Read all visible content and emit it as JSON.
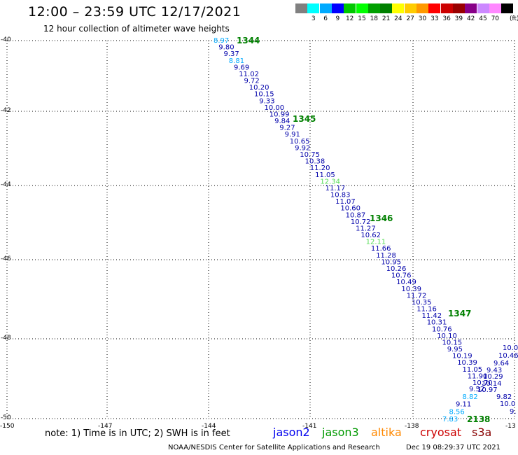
{
  "title": "12:00 – 23:59 UTC 12/17/2021",
  "subtitle": "12 hour collection of altimeter wave heights",
  "scale": {
    "unit": "(ft)",
    "swatches": [
      {
        "label": "",
        "color": "#808080"
      },
      {
        "label": "3",
        "color": "#00ffff"
      },
      {
        "label": "6",
        "color": "#00aaff"
      },
      {
        "label": "9",
        "color": "#0000ff"
      },
      {
        "label": "12",
        "color": "#00c800"
      },
      {
        "label": "15",
        "color": "#00ff00"
      },
      {
        "label": "18",
        "color": "#00a000"
      },
      {
        "label": "21",
        "color": "#008000"
      },
      {
        "label": "24",
        "color": "#ffff00"
      },
      {
        "label": "27",
        "color": "#ffcc00"
      },
      {
        "label": "30",
        "color": "#ff9900"
      },
      {
        "label": "33",
        "color": "#ff0000"
      },
      {
        "label": "36",
        "color": "#cc0000"
      },
      {
        "label": "39",
        "color": "#990000"
      },
      {
        "label": "42",
        "color": "#880088"
      },
      {
        "label": "45",
        "color": "#cc88ff"
      },
      {
        "label": "70",
        "color": "#ff88ff"
      },
      {
        "label": "",
        "color": "#000000"
      }
    ]
  },
  "map": {
    "lat_labels": [
      "-40",
      "-42",
      "-44",
      "-46",
      "-48",
      "-50"
    ],
    "lon_labels": [
      "-150",
      "-147",
      "-144",
      "-141",
      "-138",
      "-13"
    ],
    "pass_labels": [
      "1344",
      "1345",
      "1346",
      "1347",
      "2138"
    ],
    "track": [
      {
        "v": "8.97",
        "c": "#00aaff"
      },
      {
        "v": "9.80",
        "c": "#0000aa"
      },
      {
        "v": "9.37",
        "c": "#0000aa"
      },
      {
        "v": "8.81",
        "c": "#00aaff"
      },
      {
        "v": "9.69",
        "c": "#0000aa"
      },
      {
        "v": "11.02",
        "c": "#0000aa"
      },
      {
        "v": "9.72",
        "c": "#0000aa"
      },
      {
        "v": "10.20",
        "c": "#0000aa"
      },
      {
        "v": "10.15",
        "c": "#0000aa"
      },
      {
        "v": "9.33",
        "c": "#0000aa"
      },
      {
        "v": "10.00",
        "c": "#0000aa"
      },
      {
        "v": "10.99",
        "c": "#0000aa"
      },
      {
        "v": "9.84",
        "c": "#0000aa"
      },
      {
        "v": "9.27",
        "c": "#0000aa"
      },
      {
        "v": "9.91",
        "c": "#0000aa"
      },
      {
        "v": "10.65",
        "c": "#0000aa"
      },
      {
        "v": "9.92",
        "c": "#0000aa"
      },
      {
        "v": "10.75",
        "c": "#0000aa"
      },
      {
        "v": "10.38",
        "c": "#0000aa"
      },
      {
        "v": "11.20",
        "c": "#0000aa"
      },
      {
        "v": "11.05",
        "c": "#0000aa"
      },
      {
        "v": "12.34",
        "c": "#55dd55"
      },
      {
        "v": "11.17",
        "c": "#0000aa"
      },
      {
        "v": "10.83",
        "c": "#0000aa"
      },
      {
        "v": "11.07",
        "c": "#0000aa"
      },
      {
        "v": "10.60",
        "c": "#0000aa"
      },
      {
        "v": "10.87",
        "c": "#0000aa"
      },
      {
        "v": "10.72",
        "c": "#0000aa"
      },
      {
        "v": "11.27",
        "c": "#0000aa"
      },
      {
        "v": "10.62",
        "c": "#0000aa"
      },
      {
        "v": "12.11",
        "c": "#55dd55"
      },
      {
        "v": "11.66",
        "c": "#0000aa"
      },
      {
        "v": "11.28",
        "c": "#0000aa"
      },
      {
        "v": "10.95",
        "c": "#0000aa"
      },
      {
        "v": "10.26",
        "c": "#0000aa"
      },
      {
        "v": "10.76",
        "c": "#0000aa"
      },
      {
        "v": "10.49",
        "c": "#0000aa"
      },
      {
        "v": "10.39",
        "c": "#0000aa"
      },
      {
        "v": "11.72",
        "c": "#0000aa"
      },
      {
        "v": "10.35",
        "c": "#0000aa"
      },
      {
        "v": "11.16",
        "c": "#0000aa"
      },
      {
        "v": "11.42",
        "c": "#0000aa"
      },
      {
        "v": "10.31",
        "c": "#0000aa"
      },
      {
        "v": "10.76",
        "c": "#0000aa"
      },
      {
        "v": "10.10",
        "c": "#0000aa"
      },
      {
        "v": "10.15",
        "c": "#0000aa"
      },
      {
        "v": "9.95",
        "c": "#0000aa"
      },
      {
        "v": "10.19",
        "c": "#0000aa"
      },
      {
        "v": "10.39",
        "c": "#0000aa"
      },
      {
        "v": "11.05",
        "c": "#0000aa"
      },
      {
        "v": "11.90",
        "c": "#0000aa"
      },
      {
        "v": "10.70",
        "c": "#0000aa"
      },
      {
        "v": "9.52",
        "c": "#0000aa"
      },
      {
        "v": "8.82",
        "c": "#00aaff"
      },
      {
        "v": "9.11",
        "c": "#0000aa"
      },
      {
        "v": "8.56",
        "c": "#00aaff"
      },
      {
        "v": "7.83",
        "c": "#00aaff"
      }
    ],
    "track2": [
      {
        "v": "10.0",
        "c": "#0000aa"
      },
      {
        "v": "10.46",
        "c": "#0000aa"
      },
      {
        "v": "9.64",
        "c": "#0000aa"
      },
      {
        "v": "9.43",
        "c": "#0000aa"
      },
      {
        "v": "10.29",
        "c": "#0000aa"
      },
      {
        "v": "10.14",
        "c": "#0000aa"
      },
      {
        "v": "10.97",
        "c": "#0000aa"
      },
      {
        "v": "9.82",
        "c": "#0000aa"
      },
      {
        "v": "10.0",
        "c": "#0000aa"
      },
      {
        "v": "9.",
        "c": "#0000aa"
      }
    ]
  },
  "footer": {
    "note": "note:  1) Time is in UTC; 2) SWH is in feet",
    "satellites": [
      {
        "name": "jason2",
        "color": "#0000ee"
      },
      {
        "name": "jason3",
        "color": "#009900"
      },
      {
        "name": "altika",
        "color": "#ff8800"
      },
      {
        "name": "cryosat",
        "color": "#cc0000"
      },
      {
        "name": "s3a",
        "color": "#880000"
      }
    ],
    "credit": "NOAA/NESDIS Center for Satellite Applications and Research",
    "timestamp": "Dec 19 08:29:37 UTC 2021"
  }
}
